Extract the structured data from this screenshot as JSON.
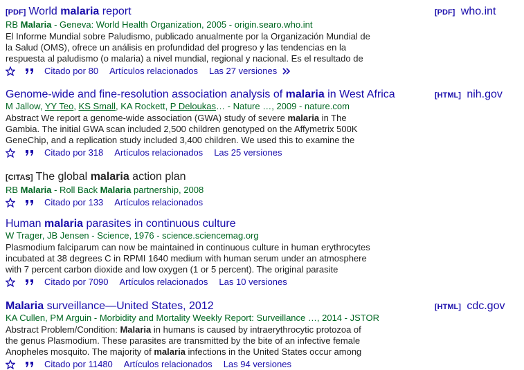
{
  "results": [
    {
      "tag": "[PDF]",
      "title_pre": "World ",
      "title_hl": "malaria",
      "title_post": " report",
      "meta_a": "RB ",
      "meta_b": "Malaria",
      "meta_c": " - Geneva: World Health Organization, 2005 - origin.searo.who.int",
      "snippet": "El Informe Mundial sobre Paludismo, publicado anualmente por la Organización Mundial de la Salud (OMS), ofrece un análisis en profundidad del progreso y las tendencias en la respuesta al paludismo (o malaria) a nivel mundial, regional y nacional. Es el resultado de",
      "cited": "Citado por 80",
      "related": "Artículos relacionados",
      "versions": "Las 27 versiones",
      "side_tag": "[PDF]",
      "side_domain": "who.int"
    },
    {
      "tag": "",
      "title_pre": "Genome-wide and fine-resolution association analysis of ",
      "title_hl": "malaria",
      "title_post": " in West Africa",
      "authors": [
        {
          "name": "M Jallow",
          "link": false
        },
        {
          "name": "YY Teo",
          "link": true
        },
        {
          "name": "KS Small",
          "link": true
        },
        {
          "name": "KA Rockett",
          "link": false
        },
        {
          "name": "P Deloukas",
          "link": true
        }
      ],
      "meta_c": "… - Nature …, 2009 - nature.com",
      "snippet_a": "Abstract We report a genome-wide association (GWA) study of severe ",
      "snippet_b": "malaria",
      "snippet_c": " in The Gambia. The initial GWA scan included 2,500 children genotyped on the Affymetrix 500K GeneChip, and a replication study included 3,400 children. We used this to examine the",
      "cited": "Citado por 318",
      "related": "Artículos relacionados",
      "versions": "Las 25 versiones",
      "side_tag": "[HTML]",
      "side_domain": "nih.gov"
    },
    {
      "tag": "[CITAS]",
      "title_pre": "The global ",
      "title_hl": "malaria",
      "title_post": " action plan",
      "meta_a": "RB ",
      "meta_b": "Malaria",
      "meta_c": " - Roll Back ",
      "meta_d": "Malaria",
      "meta_e": " partnership, 2008",
      "cited": "Citado por 133",
      "related": "Artículos relacionados"
    },
    {
      "tag": "",
      "title_pre": "Human ",
      "title_hl": "malaria",
      "title_post": " parasites in continuous culture",
      "meta_c": "W Trager, JB Jensen - Science, 1976 - science.sciencemag.org",
      "snippet": "Plasmodium falciparum can now be maintained in continuous culture in human erythrocytes incubated at 38 degrees C in RPMI 1640 medium with human serum under an atmosphere with 7 percent carbon dioxide and low oxygen (1 or 5 percent). The original parasite",
      "cited": "Citado por 7090",
      "related": "Artículos relacionados",
      "versions": "Las 10 versiones"
    },
    {
      "tag": "",
      "title_hl": "Malaria",
      "title_post": " surveillance—United States, 2012",
      "meta_c": "KA Cullen, PM Arguin - Morbidity and Mortality Weekly Report: Surveillance …, 2014 - JSTOR",
      "snippet_a": "Abstract Problem/Condition: ",
      "snippet_b": "Malaria",
      "snippet_c": " in humans is caused by intraerythrocytic protozoa of the genus Plasmodium. These parasites are transmitted by the bite of an infective female Anopheles mosquito. The majority of ",
      "snippet_d": "malaria",
      "snippet_e": " infections in the United States occur among",
      "cited": "Citado por 11480",
      "related": "Artículos relacionados",
      "versions": "Las 94 versiones",
      "side_tag": "[HTML]",
      "side_domain": "cdc.gov"
    }
  ],
  "icons": {
    "save": "star-icon",
    "cite": "quote-icon",
    "more": "double-chevron-icon"
  }
}
